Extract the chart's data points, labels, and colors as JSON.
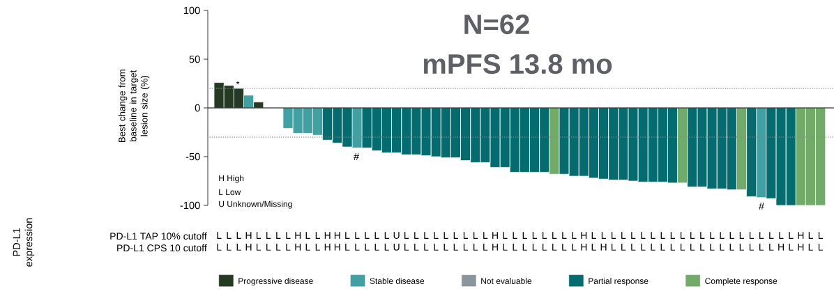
{
  "chart_data": {
    "type": "bar",
    "ylabel": "Best change from baseline in target lesion size (%)",
    "categories": [
      "L L",
      "L L",
      "L L",
      "H H",
      "L L",
      "L L",
      "L L",
      "L L",
      "H H",
      "L L",
      "L L",
      "H H",
      "H H",
      "L L",
      "L L",
      "L L",
      "L L",
      "L L",
      "U U",
      "L L",
      "L L",
      "L L",
      "L L",
      "L L",
      "L L",
      "L L",
      "L L",
      "L L",
      "H H",
      "L L",
      "L L",
      "L L",
      "L L",
      "L L",
      "L L",
      "L L",
      "L L",
      "H H",
      "L L",
      "L H",
      "L L",
      "L L",
      "L L",
      "L L",
      "L L",
      "L L",
      "L L",
      "L L",
      "L L",
      "L L",
      "L L",
      "L L",
      "L L",
      "L L",
      "L L",
      "L L",
      "L L",
      "L H",
      "L L",
      "H H",
      "L L",
      "L L"
    ],
    "series": [
      {
        "name": "Progressive disease",
        "color": "#253a22",
        "values": [
          26,
          23,
          20,
          null,
          6,
          null,
          null,
          null,
          null,
          null,
          null,
          null,
          null,
          null,
          null,
          null,
          null,
          null,
          null,
          null,
          null,
          null,
          null,
          null,
          null,
          null,
          null,
          null,
          null,
          null,
          null,
          null,
          null,
          null,
          null,
          null,
          null,
          null,
          null,
          null,
          null,
          null,
          null,
          null,
          null,
          null,
          null,
          null,
          null,
          null,
          null,
          null,
          null,
          null,
          null,
          null,
          null,
          null,
          null,
          null,
          null,
          null
        ]
      },
      {
        "name": "Stable disease",
        "color": "#40a0a2",
        "values": [
          null,
          null,
          null,
          13,
          null,
          null,
          null,
          -21,
          -26,
          -26,
          -28,
          null,
          null,
          null,
          -41,
          null,
          null,
          null,
          null,
          null,
          null,
          null,
          null,
          null,
          null,
          null,
          null,
          null,
          null,
          null,
          null,
          null,
          null,
          null,
          null,
          null,
          null,
          null,
          null,
          null,
          null,
          null,
          null,
          null,
          null,
          null,
          null,
          null,
          null,
          null,
          null,
          null,
          null,
          null,
          null,
          -92,
          null,
          null,
          null,
          null,
          null,
          null
        ]
      },
      {
        "name": "Not evaluable",
        "color": "#8c949c",
        "values": [
          null,
          null,
          null,
          null,
          null,
          null,
          null,
          null,
          null,
          null,
          null,
          null,
          null,
          null,
          null,
          null,
          null,
          null,
          null,
          null,
          null,
          null,
          null,
          null,
          null,
          null,
          null,
          null,
          null,
          null,
          null,
          null,
          null,
          null,
          null,
          null,
          null,
          null,
          null,
          null,
          null,
          null,
          null,
          null,
          null,
          null,
          null,
          null,
          null,
          null,
          null,
          null,
          null,
          null,
          null,
          null,
          null,
          null,
          null,
          null,
          null,
          null
        ]
      },
      {
        "name": "Partial response",
        "color": "#046b6e",
        "values": [
          null,
          null,
          null,
          null,
          null,
          null,
          null,
          null,
          null,
          null,
          null,
          -33,
          -36,
          -40,
          null,
          -41,
          -44,
          -46,
          -46,
          -48,
          -48,
          -49,
          -50,
          -51,
          -51,
          -54,
          -56,
          -56,
          -61,
          -61,
          -66,
          -66,
          -66,
          -66,
          null,
          -68,
          -70,
          -70,
          -72,
          -73,
          -74,
          -74,
          -75,
          -76,
          -76,
          -76,
          -77,
          null,
          -81,
          -81,
          -83,
          -83,
          -84,
          null,
          -91,
          null,
          -93,
          -100,
          -100,
          null,
          null,
          null
        ]
      },
      {
        "name": "Complete response",
        "color": "#72aa6a",
        "values": [
          null,
          null,
          null,
          null,
          null,
          null,
          null,
          null,
          null,
          null,
          null,
          null,
          null,
          null,
          null,
          null,
          null,
          null,
          null,
          null,
          null,
          null,
          null,
          null,
          null,
          null,
          null,
          null,
          null,
          null,
          null,
          null,
          null,
          null,
          -68,
          null,
          null,
          null,
          null,
          null,
          null,
          null,
          null,
          null,
          null,
          null,
          null,
          -77,
          null,
          null,
          null,
          null,
          null,
          -84,
          null,
          null,
          null,
          null,
          null,
          -100,
          -100,
          -100
        ]
      }
    ],
    "ylim": [
      -100,
      100
    ],
    "yticks": [
      -100,
      -50,
      0,
      50,
      100
    ],
    "ref_lines": [
      {
        "axis": "y",
        "value": 20,
        "color": "#8a8a8a",
        "line_style": "dotted"
      },
      {
        "axis": "y",
        "value": -30,
        "color": "#8a8a8a",
        "line_style": "dotted"
      }
    ],
    "legend": "bottom",
    "annotations": [
      "N=62",
      "mPFS 13.8 mo",
      "*",
      "#",
      "#",
      "H  High",
      "L  Low",
      "U  Unknown/Missing",
      "PD-L1 TAP 10% cutoff",
      "PD-L1 CPS 10 cutoff",
      "PD-L1 expression"
    ]
  }
}
